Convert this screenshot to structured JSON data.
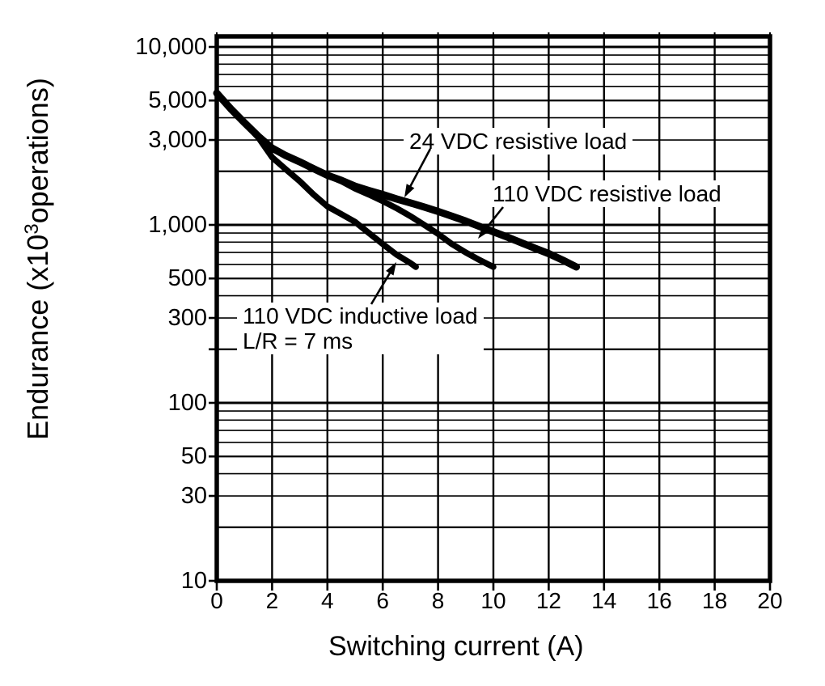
{
  "figure": {
    "background": "#ffffff",
    "ink_color": "#000000"
  },
  "chart_data": {
    "type": "line",
    "title": "",
    "xlabel": "Switching current (A)",
    "ylabel": {
      "prefix": "Endurance (x10",
      "sup": "3",
      "suffix": "operations)"
    },
    "x_axis": {
      "min": 0,
      "max": 20,
      "tick_step": 2,
      "tick_labels": [
        "0",
        "2",
        "4",
        "6",
        "8",
        "10",
        "12",
        "14",
        "16",
        "18",
        "20"
      ]
    },
    "y_axis": {
      "scale": "log",
      "min": 10,
      "max": 11500,
      "tick_labels": [
        {
          "label": "10,000",
          "value": 10000
        },
        {
          "label": "5,000",
          "value": 5000
        },
        {
          "label": "3,000",
          "value": 3000
        },
        {
          "label": "1,000",
          "value": 1000
        },
        {
          "label": "500",
          "value": 500
        },
        {
          "label": "300",
          "value": 300
        },
        {
          "label": "100",
          "value": 100
        },
        {
          "label": "50",
          "value": 50
        },
        {
          "label": "30",
          "value": 30
        },
        {
          "label": "10",
          "value": 10
        }
      ],
      "unlabeled_tick_values": [
        200
      ],
      "grid_minor": "log decades, lines at 1-9 per decade"
    },
    "grid": true,
    "legend": "none (curves labeled by on-chart annotations with arrows)",
    "series": [
      {
        "name": "24 VDC resistive load",
        "points": [
          [
            0,
            5500
          ],
          [
            0.5,
            4500
          ],
          [
            1,
            3750
          ],
          [
            1.5,
            3150
          ],
          [
            2,
            2700
          ],
          [
            2.5,
            2450
          ],
          [
            3,
            2260
          ],
          [
            3.5,
            2070
          ],
          [
            4,
            1900
          ],
          [
            4.5,
            1780
          ],
          [
            5,
            1650
          ],
          [
            5.5,
            1560
          ],
          [
            6,
            1480
          ],
          [
            6.5,
            1400
          ],
          [
            7,
            1330
          ],
          [
            7.5,
            1260
          ],
          [
            8,
            1190
          ],
          [
            8.5,
            1120
          ],
          [
            9,
            1050
          ],
          [
            9.5,
            980
          ],
          [
            10,
            915
          ],
          [
            10.5,
            855
          ],
          [
            11,
            795
          ],
          [
            11.5,
            740
          ],
          [
            12,
            690
          ],
          [
            12.5,
            635
          ],
          [
            13,
            580
          ]
        ]
      },
      {
        "name": "110 VDC resistive load",
        "points": [
          [
            0,
            5500
          ],
          [
            0.5,
            4500
          ],
          [
            1,
            3750
          ],
          [
            1.5,
            3150
          ],
          [
            2,
            2700
          ],
          [
            2.5,
            2450
          ],
          [
            3,
            2260
          ],
          [
            3.5,
            2070
          ],
          [
            4,
            1900
          ],
          [
            4.5,
            1760
          ],
          [
            5,
            1600
          ],
          [
            5.5,
            1480
          ],
          [
            6,
            1360
          ],
          [
            6.5,
            1240
          ],
          [
            7,
            1120
          ],
          [
            7.5,
            1000
          ],
          [
            8,
            890
          ],
          [
            8.5,
            780
          ],
          [
            9,
            700
          ],
          [
            9.5,
            635
          ],
          [
            10,
            580
          ]
        ]
      },
      {
        "name": "110 VDC inductive load L/R = 7 ms",
        "points": [
          [
            0,
            5500
          ],
          [
            0.5,
            4500
          ],
          [
            1,
            3750
          ],
          [
            1.5,
            3100
          ],
          [
            2,
            2400
          ],
          [
            2.5,
            2050
          ],
          [
            3,
            1760
          ],
          [
            3.5,
            1480
          ],
          [
            4,
            1270
          ],
          [
            4.5,
            1150
          ],
          [
            5,
            1040
          ],
          [
            5.5,
            900
          ],
          [
            6,
            780
          ],
          [
            6.5,
            680
          ],
          [
            7,
            610
          ],
          [
            7.2,
            580
          ]
        ]
      }
    ],
    "annotations": [
      {
        "text": "24 VDC resistive load"
      },
      {
        "text": "110 VDC resistive load"
      },
      {
        "text": "110 VDC inductive load",
        "text2": "L/R = 7 ms"
      }
    ]
  }
}
